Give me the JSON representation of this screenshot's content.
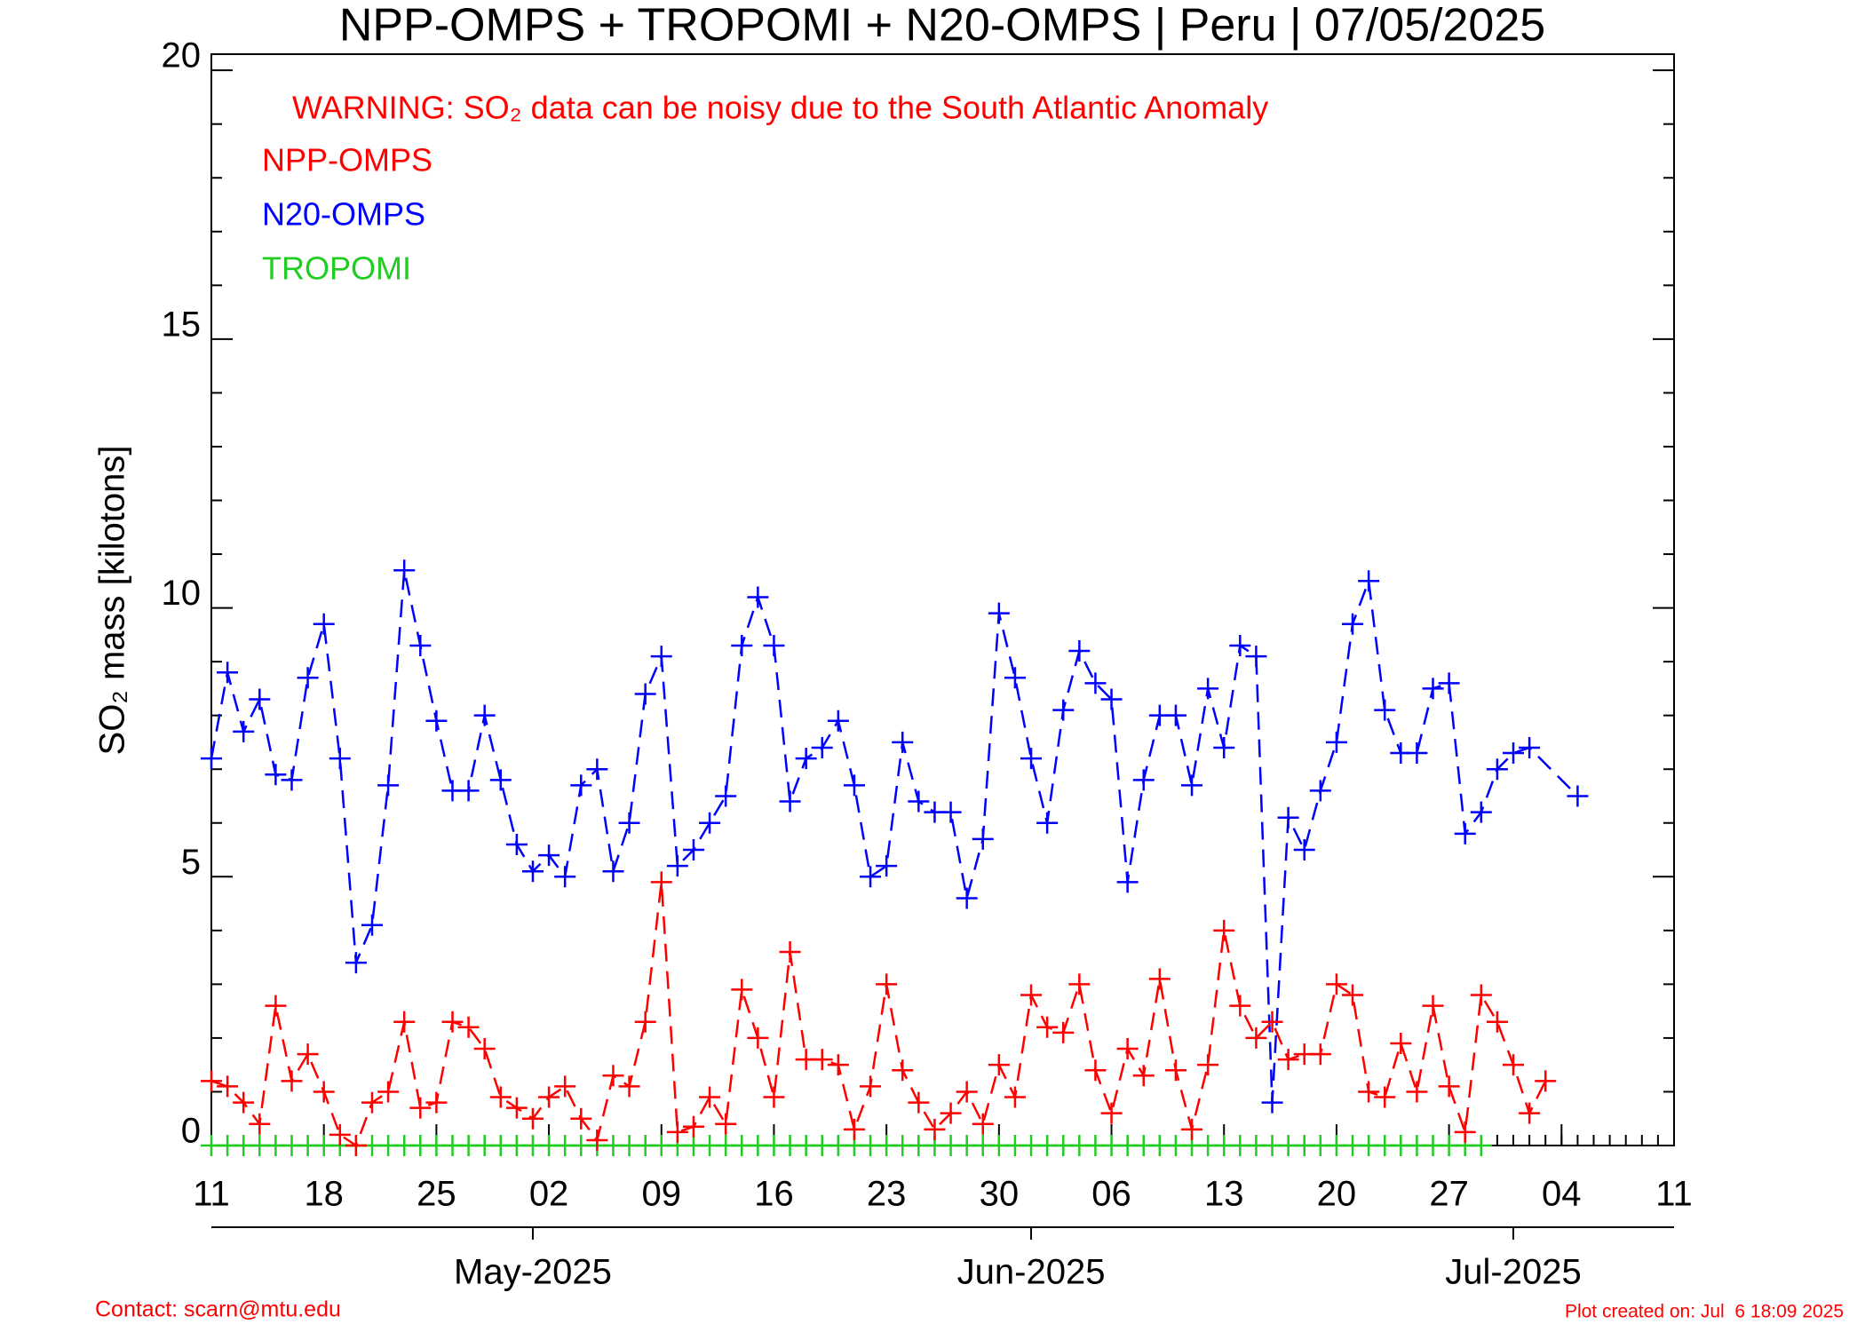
{
  "chart_data": {
    "type": "line",
    "title": "NPP-OMPS + TROPOMI + N20-OMPS | Peru | 07/05/2025",
    "warning": "WARNING: SO₂ data can be noisy due to the South Atlantic Anomaly",
    "y_label": "SO₂ mass [kilotons]",
    "contact": "Contact: scarn@mtu.edu",
    "created": "Plot created on: Jul  6 18:09 2025",
    "xlim": [
      "2025-04-11",
      "2025-07-11"
    ],
    "xticks": [
      {
        "value": "2025-04-11",
        "label": "11"
      },
      {
        "value": "2025-04-18",
        "label": "18"
      },
      {
        "value": "2025-04-25",
        "label": "25"
      },
      {
        "value": "2025-05-02",
        "label": "02"
      },
      {
        "value": "2025-05-09",
        "label": "09"
      },
      {
        "value": "2025-05-16",
        "label": "16"
      },
      {
        "value": "2025-05-23",
        "label": "23"
      },
      {
        "value": "2025-05-30",
        "label": "30"
      },
      {
        "value": "2025-06-06",
        "label": "06"
      },
      {
        "value": "2025-06-13",
        "label": "13"
      },
      {
        "value": "2025-06-20",
        "label": "20"
      },
      {
        "value": "2025-06-27",
        "label": "27"
      },
      {
        "value": "2025-07-04",
        "label": "04"
      },
      {
        "value": "2025-07-11",
        "label": "11"
      }
    ],
    "x2ticks": [
      {
        "value": "2025-05-01",
        "label": "May-2025"
      },
      {
        "value": "2025-06-01",
        "label": "Jun-2025"
      },
      {
        "value": "2025-07-01",
        "label": "Jul-2025"
      }
    ],
    "ylim": [
      0,
      20.3
    ],
    "yticks": [
      0,
      5,
      10,
      15,
      20
    ],
    "series": [
      {
        "name": "NPP-OMPS",
        "color": "#ff0000",
        "dashed": true,
        "x": [
          "2025-04-11",
          "2025-04-12",
          "2025-04-13",
          "2025-04-14",
          "2025-04-15",
          "2025-04-16",
          "2025-04-17",
          "2025-04-18",
          "2025-04-19",
          "2025-04-20",
          "2025-04-21",
          "2025-04-22",
          "2025-04-23",
          "2025-04-24",
          "2025-04-25",
          "2025-04-26",
          "2025-04-27",
          "2025-04-28",
          "2025-04-29",
          "2025-04-30",
          "2025-05-01",
          "2025-05-02",
          "2025-05-03",
          "2025-05-04",
          "2025-05-05",
          "2025-05-06",
          "2025-05-07",
          "2025-05-08",
          "2025-05-09",
          "2025-05-10",
          "2025-05-11",
          "2025-05-12",
          "2025-05-13",
          "2025-05-14",
          "2025-05-15",
          "2025-05-16",
          "2025-05-17",
          "2025-05-18",
          "2025-05-19",
          "2025-05-20",
          "2025-05-21",
          "2025-05-22",
          "2025-05-23",
          "2025-05-24",
          "2025-05-25",
          "2025-05-26",
          "2025-05-27",
          "2025-05-28",
          "2025-05-29",
          "2025-05-30",
          "2025-05-31",
          "2025-06-01",
          "2025-06-02",
          "2025-06-03",
          "2025-06-04",
          "2025-06-05",
          "2025-06-06",
          "2025-06-07",
          "2025-06-08",
          "2025-06-09",
          "2025-06-10",
          "2025-06-11",
          "2025-06-12",
          "2025-06-13",
          "2025-06-14",
          "2025-06-15",
          "2025-06-16",
          "2025-06-17",
          "2025-06-18",
          "2025-06-19",
          "2025-06-20",
          "2025-06-21",
          "2025-06-22",
          "2025-06-23",
          "2025-06-24",
          "2025-06-25",
          "2025-06-26",
          "2025-06-27",
          "2025-06-28",
          "2025-06-29",
          "2025-06-30",
          "2025-07-01",
          "2025-07-02",
          "2025-07-03"
        ],
        "values": [
          1.2,
          1.1,
          0.8,
          0.4,
          2.6,
          1.2,
          1.7,
          1.0,
          0.2,
          0.0,
          0.8,
          1.0,
          2.3,
          0.7,
          0.8,
          2.3,
          2.2,
          1.8,
          0.9,
          0.7,
          0.5,
          0.9,
          1.1,
          0.5,
          0.1,
          1.3,
          1.1,
          2.3,
          4.9,
          0.25,
          0.35,
          0.9,
          0.4,
          2.9,
          2.0,
          0.9,
          3.6,
          1.6,
          1.6,
          1.5,
          0.3,
          1.1,
          3.0,
          1.4,
          0.8,
          0.3,
          0.6,
          1.0,
          0.4,
          1.5,
          0.9,
          2.8,
          2.2,
          2.1,
          3.0,
          1.4,
          0.6,
          1.8,
          1.3,
          3.1,
          1.4,
          0.3,
          1.5,
          4.0,
          2.6,
          2.0,
          2.3,
          1.6,
          1.7,
          1.7,
          3.0,
          2.8,
          1.0,
          0.9,
          1.9,
          1.0,
          2.6,
          1.1,
          0.25,
          2.8,
          2.3,
          1.5,
          0.6,
          1.2
        ]
      },
      {
        "name": "N20-OMPS",
        "color": "#0000ff",
        "dashed": true,
        "x": [
          "2025-04-11",
          "2025-04-12",
          "2025-04-13",
          "2025-04-14",
          "2025-04-15",
          "2025-04-16",
          "2025-04-17",
          "2025-04-18",
          "2025-04-19",
          "2025-04-20",
          "2025-04-21",
          "2025-04-22",
          "2025-04-23",
          "2025-04-24",
          "2025-04-25",
          "2025-04-26",
          "2025-04-27",
          "2025-04-28",
          "2025-04-29",
          "2025-04-30",
          "2025-05-01",
          "2025-05-02",
          "2025-05-03",
          "2025-05-04",
          "2025-05-05",
          "2025-05-06",
          "2025-05-07",
          "2025-05-08",
          "2025-05-09",
          "2025-05-10",
          "2025-05-11",
          "2025-05-12",
          "2025-05-13",
          "2025-05-14",
          "2025-05-15",
          "2025-05-16",
          "2025-05-17",
          "2025-05-18",
          "2025-05-19",
          "2025-05-20",
          "2025-05-21",
          "2025-05-22",
          "2025-05-23",
          "2025-05-24",
          "2025-05-25",
          "2025-05-26",
          "2025-05-27",
          "2025-05-28",
          "2025-05-29",
          "2025-05-30",
          "2025-05-31",
          "2025-06-01",
          "2025-06-02",
          "2025-06-03",
          "2025-06-04",
          "2025-06-05",
          "2025-06-06",
          "2025-06-07",
          "2025-06-08",
          "2025-06-09",
          "2025-06-10",
          "2025-06-11",
          "2025-06-12",
          "2025-06-13",
          "2025-06-14",
          "2025-06-15",
          "2025-06-16",
          "2025-06-17",
          "2025-06-18",
          "2025-06-19",
          "2025-06-20",
          "2025-06-21",
          "2025-06-22",
          "2025-06-23",
          "2025-06-24",
          "2025-06-25",
          "2025-06-26",
          "2025-06-27",
          "2025-06-28",
          "2025-06-29",
          "2025-06-30",
          "2025-07-01",
          "2025-07-02",
          "2025-07-05"
        ],
        "values": [
          7.2,
          8.8,
          7.7,
          8.3,
          6.9,
          6.8,
          8.7,
          9.7,
          7.2,
          3.4,
          4.1,
          6.7,
          10.7,
          9.3,
          7.9,
          6.6,
          6.6,
          8.0,
          6.8,
          5.6,
          5.1,
          5.4,
          5.0,
          6.7,
          7.0,
          5.1,
          6.0,
          8.4,
          9.1,
          5.2,
          5.5,
          6.0,
          6.5,
          9.3,
          10.2,
          9.3,
          6.4,
          7.2,
          7.4,
          7.9,
          6.7,
          5.0,
          5.2,
          7.5,
          6.4,
          6.2,
          6.2,
          4.6,
          5.7,
          9.9,
          8.7,
          7.2,
          6.0,
          8.1,
          9.2,
          8.6,
          8.3,
          4.9,
          6.8,
          8.0,
          8.0,
          6.7,
          8.5,
          7.4,
          9.3,
          9.1,
          0.8,
          6.1,
          5.5,
          6.6,
          7.5,
          9.7,
          10.5,
          8.1,
          7.3,
          7.3,
          8.5,
          8.6,
          5.8,
          6.2,
          7.0,
          7.3,
          7.4,
          6.5
        ]
      },
      {
        "name": "TROPOMI",
        "color": "#22cc22",
        "dashed": false,
        "x": [
          "2025-04-11",
          "2025-04-12",
          "2025-04-13",
          "2025-04-14",
          "2025-04-15",
          "2025-04-16",
          "2025-04-17",
          "2025-04-18",
          "2025-04-19",
          "2025-04-20",
          "2025-04-21",
          "2025-04-22",
          "2025-04-23",
          "2025-04-24",
          "2025-04-25",
          "2025-04-26",
          "2025-04-27",
          "2025-04-28",
          "2025-04-29",
          "2025-04-30",
          "2025-05-01",
          "2025-05-02",
          "2025-05-03",
          "2025-05-04",
          "2025-05-05",
          "2025-05-06",
          "2025-05-07",
          "2025-05-08",
          "2025-05-09",
          "2025-05-10",
          "2025-05-11",
          "2025-05-12",
          "2025-05-13",
          "2025-05-14",
          "2025-05-15",
          "2025-05-16",
          "2025-05-17",
          "2025-05-18",
          "2025-05-19",
          "2025-05-20",
          "2025-05-21",
          "2025-05-22",
          "2025-05-23",
          "2025-05-24",
          "2025-05-25",
          "2025-05-26",
          "2025-05-27",
          "2025-05-28",
          "2025-05-29",
          "2025-05-30",
          "2025-05-31",
          "2025-06-01",
          "2025-06-02",
          "2025-06-03",
          "2025-06-04",
          "2025-06-05",
          "2025-06-06",
          "2025-06-07",
          "2025-06-08",
          "2025-06-09",
          "2025-06-10",
          "2025-06-11",
          "2025-06-12",
          "2025-06-13",
          "2025-06-14",
          "2025-06-15",
          "2025-06-16",
          "2025-06-17",
          "2025-06-18",
          "2025-06-19",
          "2025-06-20",
          "2025-06-21",
          "2025-06-22",
          "2025-06-23",
          "2025-06-24",
          "2025-06-25",
          "2025-06-26",
          "2025-06-27",
          "2025-06-28",
          "2025-06-29"
        ],
        "values": [
          0,
          0,
          0,
          0,
          0,
          0,
          0,
          0,
          0,
          0,
          0,
          0,
          0,
          0,
          0,
          0,
          0,
          0,
          0,
          0,
          0,
          0,
          0,
          0,
          0,
          0,
          0,
          0,
          0,
          0,
          0,
          0,
          0,
          0,
          0,
          0,
          0,
          0,
          0,
          0,
          0,
          0,
          0,
          0,
          0,
          0,
          0,
          0,
          0,
          0,
          0,
          0,
          0,
          0,
          0,
          0,
          0,
          0,
          0,
          0,
          0,
          0,
          0,
          0,
          0,
          0,
          0,
          0,
          0,
          0,
          0,
          0,
          0,
          0,
          0,
          0,
          0,
          0,
          0,
          0
        ]
      }
    ]
  }
}
